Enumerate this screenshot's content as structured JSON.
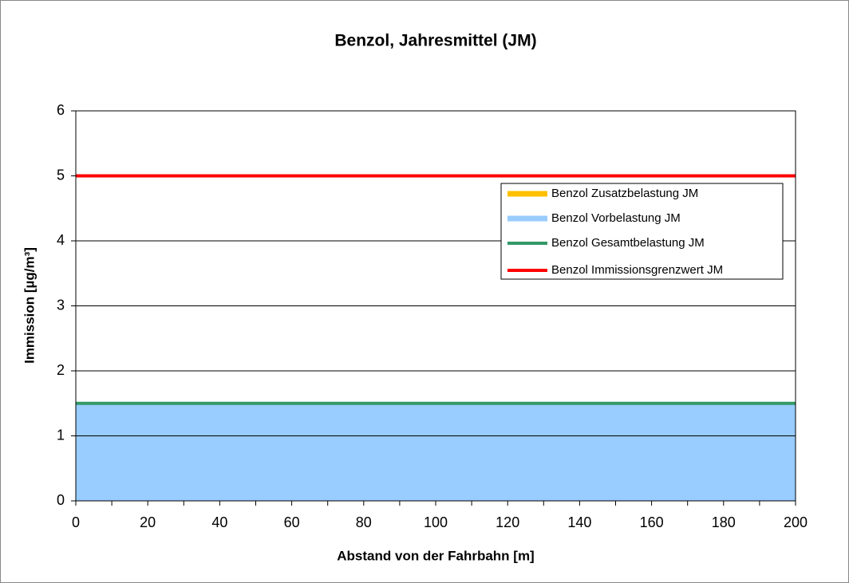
{
  "chart_data": {
    "type": "line",
    "title": "Benzol, Jahresmittel (JM)",
    "x_label": "Abstand von der Fahrbahn [m]",
    "y_label": "Immission [µg/m³]",
    "x": [
      0,
      200
    ],
    "series": [
      {
        "name": "Benzol Zusatzbelastung JM",
        "color": "#ffc000",
        "kind": "stacked-area",
        "values": [
          0,
          0
        ]
      },
      {
        "name": "Benzol Vorbelastung JM",
        "color": "#99ccff",
        "kind": "area",
        "values": [
          1.5,
          1.5
        ]
      },
      {
        "name": "Benzol Gesamtbelastung JM",
        "color": "#339966",
        "kind": "line",
        "values": [
          1.5,
          1.5
        ]
      },
      {
        "name": "Benzol Immissionsgrenzwert JM",
        "color": "#ff0000",
        "kind": "line",
        "values": [
          5,
          5
        ]
      }
    ],
    "xlim": [
      0,
      200
    ],
    "xticks": [
      0,
      20,
      40,
      60,
      80,
      100,
      120,
      140,
      160,
      180,
      200
    ],
    "ylim": [
      0,
      6
    ],
    "yticks": [
      0,
      1,
      2,
      3,
      4,
      5,
      6
    ],
    "grid": true,
    "legend": "upper right"
  }
}
